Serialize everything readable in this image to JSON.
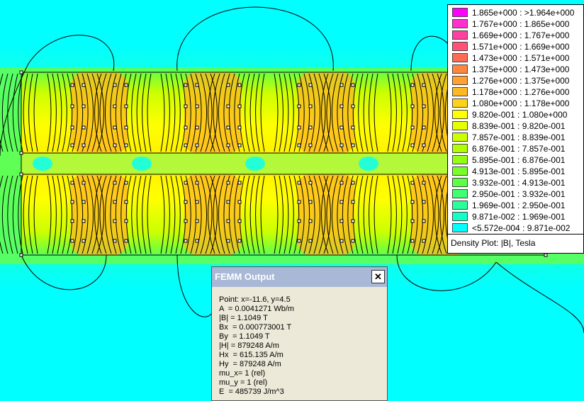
{
  "legend": {
    "title": "Density Plot: |B|, Tesla",
    "entries": [
      {
        "label": "1.865e+000 : >1.964e+000",
        "color": "#ff00ff"
      },
      {
        "label": "1.767e+000 : 1.865e+000",
        "color": "#ff2fcf"
      },
      {
        "label": "1.669e+000 : 1.767e+000",
        "color": "#ff40a0"
      },
      {
        "label": "1.571e+000 : 1.669e+000",
        "color": "#ff5276"
      },
      {
        "label": "1.473e+000 : 1.571e+000",
        "color": "#ff6a54"
      },
      {
        "label": "1.375e+000 : 1.473e+000",
        "color": "#ff8640"
      },
      {
        "label": "1.276e+000 : 1.375e+000",
        "color": "#ffa030"
      },
      {
        "label": "1.178e+000 : 1.276e+000",
        "color": "#ffb822"
      },
      {
        "label": "1.080e+000 : 1.178e+000",
        "color": "#ffd21a"
      },
      {
        "label": "9.820e-001 : 1.080e+000",
        "color": "#ffff00"
      },
      {
        "label": "8.839e-001 : 9.820e-001",
        "color": "#e6ff00"
      },
      {
        "label": "7.857e-001 : 8.839e-001",
        "color": "#ccff00"
      },
      {
        "label": "6.876e-001 : 7.857e-001",
        "color": "#b0ff00"
      },
      {
        "label": "5.895e-001 : 6.876e-001",
        "color": "#94ff14"
      },
      {
        "label": "4.913e-001 : 5.895e-001",
        "color": "#78ff28"
      },
      {
        "label": "3.932e-001 : 4.913e-001",
        "color": "#5aff46"
      },
      {
        "label": "2.950e-001 : 3.932e-001",
        "color": "#40ff70"
      },
      {
        "label": "1.969e-001 : 2.950e-001",
        "color": "#28ff9a"
      },
      {
        "label": "9.871e-002 : 1.969e-001",
        "color": "#14ffc8"
      },
      {
        "label": "<5.572e-004 : 9.871e-002",
        "color": "#00ffff"
      }
    ]
  },
  "femm": {
    "title": "FEMM Output",
    "close_label": "✕",
    "lines": [
      "Point: x=-11.6, y=4.5",
      "A  = 0.0041271 Wb/m",
      "|B| = 1.1049 T",
      "Bx  = 0.000773001 T",
      "By  = 1.1049 T",
      "|H| = 879248 A/m",
      "Hx  = 615.135 A/m",
      "Hy  = 879248 A/m",
      "mu_x= 1 (rel)",
      "mu_y = 1 (rel)",
      "E  = 485739 J/m^3"
    ]
  }
}
